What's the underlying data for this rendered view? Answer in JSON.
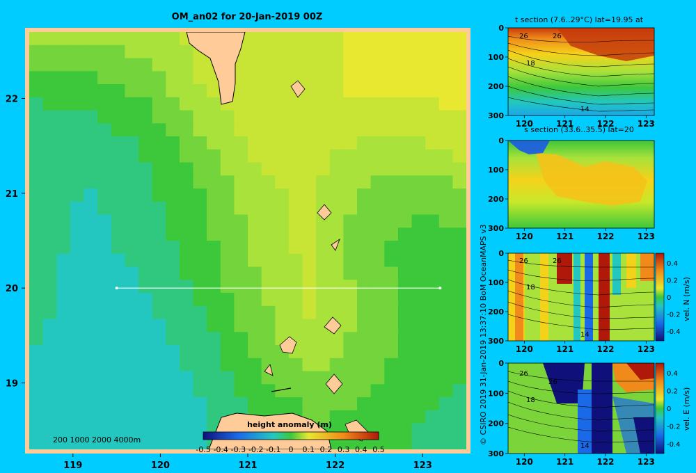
{
  "colors": {
    "background": "#00CCFF",
    "land": "#FFCC99",
    "section_line": "#FFFFFF"
  },
  "main_map": {
    "title": "OM_an02 for 20-Jan-2019 00Z",
    "x_ticks": [
      "119",
      "120",
      "121",
      "122",
      "123"
    ],
    "y_ticks": [
      "22",
      "21",
      "20",
      "19"
    ],
    "depth_contour_labels": "200  1000  2000  4000m",
    "colorbar_title": "height anomaly (m)",
    "colorbar_ticks": [
      "-0.5",
      "-0.4",
      "-0.3",
      "-0.2",
      "-0.1",
      "0",
      "0.1",
      "0.2",
      "0.3",
      "0.4",
      "0.5"
    ]
  },
  "side_panels": [
    {
      "title": "t section (7.6..29°C) lat=19.95 at",
      "y_ticks": [
        "0",
        "100",
        "200",
        "300"
      ],
      "x_ticks": [
        "120",
        "121",
        "122",
        "123"
      ],
      "contour_labels": [
        "26",
        "26",
        "18",
        "14"
      ]
    },
    {
      "title": "s section (33.6..35.5) lat=20",
      "y_ticks": [
        "0",
        "100",
        "200",
        "300"
      ],
      "x_ticks": [
        "120",
        "121",
        "122",
        "123"
      ],
      "contour_labels": []
    },
    {
      "title": "",
      "y_ticks": [
        "0",
        "100",
        "200",
        "300"
      ],
      "x_ticks": [
        "120",
        "121",
        "122",
        "123"
      ],
      "contour_labels": [
        "26",
        "26",
        "18",
        "14"
      ],
      "colorbar_label": "vel. N  (m/s)",
      "colorbar_ticks": [
        "0.4",
        "0.2",
        "0",
        "-0.2",
        "-0.4"
      ]
    },
    {
      "title": "",
      "y_ticks": [
        "0",
        "100",
        "200",
        "300"
      ],
      "x_ticks": [
        "120",
        "121",
        "122",
        "123"
      ],
      "contour_labels": [
        "26",
        "26",
        "18",
        "14"
      ],
      "colorbar_label": "vel. E  (m/s)",
      "colorbar_ticks": [
        "0.4",
        "0.2",
        "0",
        "-0.2",
        "-0.4"
      ]
    }
  ],
  "credit": "© CSIRO 2019   31-Jan-2019 13:37:10 BoM OceanMAPS v3",
  "chart_data": {
    "type": "heatmap",
    "title": "OM_an02 for 20-Jan-2019 00Z",
    "xlim": [
      118.5,
      123.5
    ],
    "ylim": [
      18.3,
      22.7
    ],
    "colorbar_range": [
      -0.5,
      0.5
    ],
    "section_line": {
      "lat": 20.0,
      "lon": [
        119.5,
        123.2
      ]
    },
    "height_anomaly_field": [
      [
        0.08,
        0.08,
        0.1,
        0.14,
        0.16,
        0.16,
        0.18,
        0.2,
        0.2
      ],
      [
        -0.02,
        0.0,
        0.04,
        0.12,
        0.16,
        0.16,
        0.18,
        0.18,
        0.2
      ],
      [
        -0.05,
        -0.06,
        -0.02,
        0.06,
        0.14,
        0.14,
        0.12,
        0.12,
        0.16
      ],
      [
        -0.06,
        -0.08,
        -0.04,
        0.02,
        0.1,
        0.14,
        0.06,
        0.04,
        0.06
      ],
      [
        -0.06,
        -0.09,
        -0.06,
        0.0,
        0.08,
        0.14,
        0.04,
        0.0,
        0.0
      ],
      [
        -0.06,
        -0.1,
        -0.08,
        -0.02,
        0.06,
        0.14,
        0.06,
        0.0,
        -0.02
      ],
      [
        -0.08,
        -0.1,
        -0.1,
        -0.06,
        0.04,
        0.1,
        0.06,
        0.0,
        -0.02
      ],
      [
        -0.08,
        -0.1,
        -0.1,
        -0.08,
        -0.02,
        0.04,
        0.02,
        -0.02,
        -0.04
      ],
      [
        -0.08,
        -0.1,
        -0.1,
        -0.08,
        -0.04,
        0.02,
        0.0,
        -0.04,
        -0.04
      ]
    ]
  }
}
